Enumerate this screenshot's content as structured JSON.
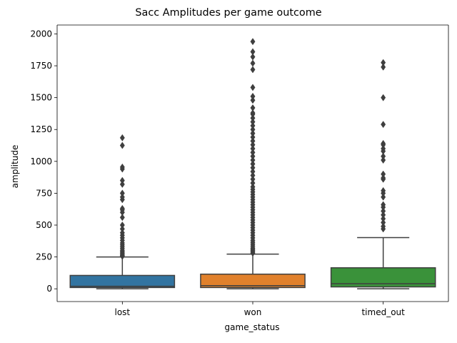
{
  "chart_data": {
    "type": "box",
    "title": "Sacc Amplitudes per game outcome",
    "xlabel": "game_status",
    "ylabel": "amplitude",
    "ylim": [
      -100,
      2070
    ],
    "yticks": [
      0,
      250,
      500,
      750,
      1000,
      1250,
      1500,
      1750,
      2000
    ],
    "grid": false,
    "categories": [
      "lost",
      "won",
      "timed_out"
    ],
    "colors": [
      "#3274a1",
      "#e1812c",
      "#3a923a"
    ],
    "boxes": [
      {
        "name": "lost",
        "whisker_low": 0,
        "q1": 10,
        "median": 20,
        "q3": 105,
        "whisker_high": 250,
        "outliers": [
          255,
          262,
          270,
          280,
          290,
          300,
          315,
          330,
          345,
          360,
          380,
          400,
          420,
          440,
          470,
          500,
          560,
          600,
          620,
          630,
          700,
          720,
          750,
          820,
          850,
          940,
          955,
          1125,
          1185
        ]
      },
      {
        "name": "won",
        "whisker_low": 0,
        "q1": 10,
        "median": 25,
        "q3": 115,
        "whisker_high": 272,
        "outliers": [
          280,
          290,
          300,
          310,
          320,
          335,
          350,
          365,
          380,
          400,
          420,
          440,
          460,
          480,
          500,
          520,
          540,
          560,
          580,
          600,
          620,
          640,
          660,
          680,
          700,
          720,
          740,
          760,
          780,
          800,
          830,
          860,
          890,
          920,
          950,
          980,
          1010,
          1040,
          1070,
          1100,
          1130,
          1160,
          1190,
          1220,
          1250,
          1280,
          1310,
          1340,
          1370,
          1380,
          1420,
          1480,
          1510,
          1580,
          1720,
          1770,
          1820,
          1860,
          1940
        ]
      },
      {
        "name": "timed_out",
        "whisker_low": 0,
        "q1": 15,
        "median": 40,
        "q3": 165,
        "whisker_high": 402,
        "outliers": [
          470,
          490,
          520,
          550,
          580,
          610,
          640,
          660,
          720,
          750,
          770,
          860,
          870,
          900,
          1010,
          1040,
          1080,
          1100,
          1130,
          1140,
          1290,
          1500,
          1740,
          1775
        ]
      }
    ]
  }
}
